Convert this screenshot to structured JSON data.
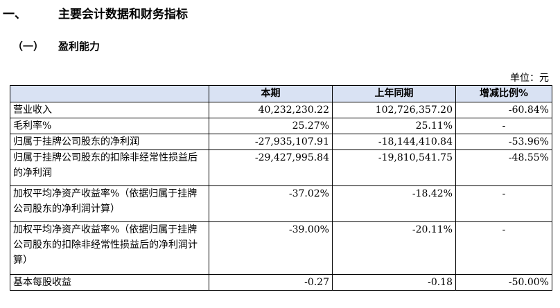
{
  "heading": {
    "number": "一、",
    "title": "主要会计数据和财务指标"
  },
  "subheading": {
    "number": "（一）",
    "title": "盈利能力"
  },
  "unit": "单位：元",
  "table": {
    "headers": [
      "",
      "本期",
      "上年同期",
      "增减比例%"
    ],
    "rows": [
      {
        "label": "营业收入",
        "current": "40,232,230.22",
        "previous": "102,726,357.20",
        "change": "-60.84%"
      },
      {
        "label": "毛利率%",
        "current": "25.27%",
        "previous": "25.11%",
        "change": "-"
      },
      {
        "label": "归属于挂牌公司股东的净利润",
        "current": "-27,935,107.91",
        "previous": "-18,144,410.84",
        "change": "-53.96%"
      },
      {
        "label": "归属于挂牌公司股东的扣除非经常性损益后的净利润",
        "current": "-29,427,995.84",
        "previous": "-19,810,541.75",
        "change": "-48.55%"
      },
      {
        "label": "加权平均净资产收益率%（依据归属于挂牌公司股东的净利润计算）",
        "current": "-37.02%",
        "previous": "-18.42%",
        "change": "-"
      },
      {
        "label": "加权平均净资产收益率%（依据归属于挂牌公司股东的扣除非经常性损益后的净利润计算）",
        "current": "-39.00%",
        "previous": "-20.11%",
        "change": "-"
      },
      {
        "label": "基本每股收益",
        "current": "-0.27",
        "previous": "-0.18",
        "change": "-50.00%"
      }
    ]
  }
}
